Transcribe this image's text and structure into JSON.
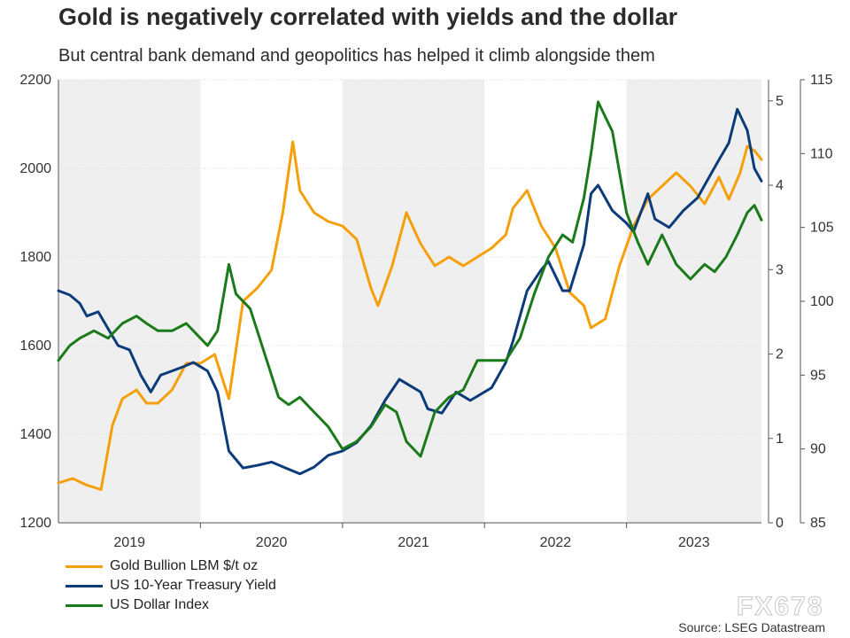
{
  "chart_data": {
    "type": "line",
    "title": "Gold is negatively correlated with yields and the dollar",
    "subtitle": "But central bank demand and geopolitics has helped it climb alongside them",
    "x_categories": [
      "2019",
      "2020",
      "2021",
      "2022",
      "2023"
    ],
    "x_range": [
      2019.0,
      2023.95
    ],
    "left_axis": {
      "ylim": [
        1200,
        2200
      ],
      "ticks": [
        1200,
        1400,
        1600,
        1800,
        2000,
        2200
      ]
    },
    "right_axis_yield": {
      "ylim": [
        0,
        5.25
      ],
      "ticks": [
        0,
        1,
        2,
        3,
        4,
        5
      ]
    },
    "right_axis_dollar": {
      "ylim": [
        85,
        115
      ],
      "ticks": [
        85,
        90,
        95,
        100,
        105,
        110,
        115
      ]
    },
    "series": [
      {
        "name": "Gold Bullion LBM $/t oz",
        "axis": "left",
        "color": "#F5A00A",
        "x": [
          2019.0,
          2019.1,
          2019.2,
          2019.3,
          2019.38,
          2019.45,
          2019.55,
          2019.62,
          2019.7,
          2019.8,
          2019.9,
          2020.0,
          2020.1,
          2020.2,
          2020.3,
          2020.4,
          2020.5,
          2020.58,
          2020.65,
          2020.7,
          2020.8,
          2020.9,
          2021.0,
          2021.1,
          2021.2,
          2021.25,
          2021.35,
          2021.45,
          2021.55,
          2021.65,
          2021.75,
          2021.85,
          2021.95,
          2022.05,
          2022.15,
          2022.2,
          2022.3,
          2022.4,
          2022.5,
          2022.6,
          2022.7,
          2022.75,
          2022.85,
          2022.95,
          2023.05,
          2023.15,
          2023.25,
          2023.35,
          2023.45,
          2023.55,
          2023.65,
          2023.72,
          2023.8,
          2023.85,
          2023.9,
          2023.95
        ],
        "values": [
          1290,
          1300,
          1285,
          1275,
          1420,
          1480,
          1500,
          1470,
          1470,
          1500,
          1560,
          1560,
          1580,
          1480,
          1700,
          1730,
          1770,
          1900,
          2060,
          1950,
          1900,
          1880,
          1870,
          1840,
          1730,
          1690,
          1780,
          1900,
          1830,
          1780,
          1800,
          1780,
          1800,
          1820,
          1850,
          1910,
          1950,
          1870,
          1820,
          1720,
          1690,
          1640,
          1660,
          1780,
          1870,
          1930,
          1960,
          1990,
          1960,
          1920,
          1980,
          1930,
          1990,
          2050,
          2040,
          2020
        ]
      },
      {
        "name": "US 10-Year Treasury Yield",
        "axis": "right_yield",
        "color": "#0C3B7A",
        "x": [
          2019.0,
          2019.08,
          2019.15,
          2019.2,
          2019.28,
          2019.35,
          2019.42,
          2019.5,
          2019.58,
          2019.65,
          2019.72,
          2019.8,
          2019.88,
          2019.95,
          2020.0,
          2020.05,
          2020.12,
          2020.2,
          2020.3,
          2020.4,
          2020.5,
          2020.6,
          2020.7,
          2020.8,
          2020.9,
          2021.0,
          2021.1,
          2021.2,
          2021.3,
          2021.4,
          2021.5,
          2021.55,
          2021.6,
          2021.7,
          2021.8,
          2021.9,
          2021.95,
          2022.05,
          2022.15,
          2022.2,
          2022.3,
          2022.4,
          2022.45,
          2022.55,
          2022.6,
          2022.7,
          2022.75,
          2022.8,
          2022.9,
          2023.0,
          2023.05,
          2023.15,
          2023.2,
          2023.3,
          2023.4,
          2023.5,
          2023.55,
          2023.65,
          2023.72,
          2023.78,
          2023.85,
          2023.9,
          2023.95
        ],
        "values": [
          2.75,
          2.7,
          2.6,
          2.45,
          2.5,
          2.3,
          2.1,
          2.05,
          1.75,
          1.55,
          1.75,
          1.8,
          1.85,
          1.9,
          1.85,
          1.8,
          1.55,
          0.85,
          0.65,
          0.68,
          0.72,
          0.65,
          0.58,
          0.66,
          0.8,
          0.85,
          0.95,
          1.15,
          1.45,
          1.7,
          1.6,
          1.55,
          1.35,
          1.3,
          1.55,
          1.45,
          1.5,
          1.6,
          1.9,
          2.15,
          2.75,
          3.0,
          3.1,
          2.75,
          2.75,
          3.3,
          3.9,
          4.0,
          3.7,
          3.55,
          3.45,
          3.9,
          3.6,
          3.5,
          3.7,
          3.85,
          4.0,
          4.3,
          4.5,
          4.9,
          4.65,
          4.2,
          4.05
        ]
      },
      {
        "name": "US Dollar Index",
        "axis": "right_dollar",
        "color": "#1A7A1A",
        "x": [
          2019.0,
          2019.08,
          2019.15,
          2019.25,
          2019.35,
          2019.45,
          2019.55,
          2019.62,
          2019.7,
          2019.8,
          2019.9,
          2020.0,
          2020.05,
          2020.12,
          2020.2,
          2020.25,
          2020.35,
          2020.45,
          2020.55,
          2020.62,
          2020.7,
          2020.8,
          2020.9,
          2021.0,
          2021.1,
          2021.2,
          2021.3,
          2021.38,
          2021.45,
          2021.55,
          2021.65,
          2021.75,
          2021.85,
          2021.95,
          2022.05,
          2022.15,
          2022.25,
          2022.35,
          2022.45,
          2022.55,
          2022.62,
          2022.7,
          2022.75,
          2022.8,
          2022.9,
          2023.0,
          2023.08,
          2023.15,
          2023.25,
          2023.35,
          2023.45,
          2023.55,
          2023.62,
          2023.7,
          2023.78,
          2023.85,
          2023.9,
          2023.95
        ],
        "values": [
          96.0,
          97.0,
          97.5,
          98.0,
          97.5,
          98.5,
          99.0,
          98.5,
          98.0,
          98.0,
          98.5,
          97.5,
          97.0,
          98.0,
          102.5,
          100.5,
          99.5,
          96.5,
          93.5,
          93.0,
          93.5,
          92.5,
          91.5,
          90.0,
          90.5,
          91.5,
          93.0,
          92.5,
          90.5,
          89.5,
          92.5,
          93.5,
          94.0,
          96.0,
          96.0,
          96.0,
          97.5,
          100.5,
          103.0,
          104.5,
          104.0,
          107.0,
          110.0,
          113.5,
          111.5,
          106.0,
          104.0,
          102.5,
          104.5,
          102.5,
          101.5,
          102.5,
          102.0,
          103.0,
          104.5,
          106.0,
          106.5,
          105.5
        ]
      }
    ],
    "legend_position": "bottom-left",
    "annotation": "Source: LSEG Datastream"
  },
  "watermark": "FX678",
  "colors": {
    "gold": "#F5A00A",
    "yield": "#0C3B7A",
    "dollar": "#1A7A1A",
    "shade": "#EFEFEF"
  }
}
